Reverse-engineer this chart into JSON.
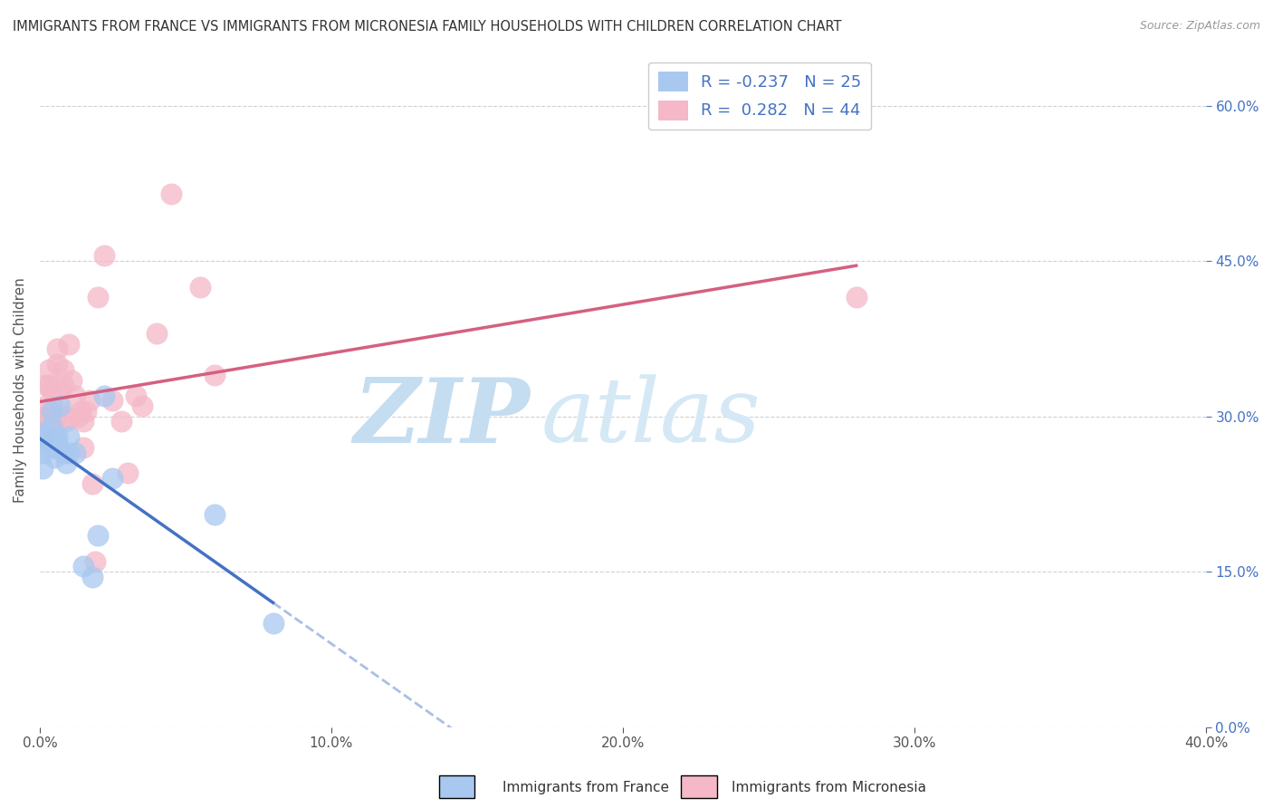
{
  "title": "IMMIGRANTS FROM FRANCE VS IMMIGRANTS FROM MICRONESIA FAMILY HOUSEHOLDS WITH CHILDREN CORRELATION CHART",
  "source": "Source: ZipAtlas.com",
  "ylabel": "Family Households with Children",
  "legend_france": "Immigrants from France",
  "legend_micronesia": "Immigrants from Micronesia",
  "R_france": -0.237,
  "N_france": 25,
  "R_micronesia": 0.282,
  "N_micronesia": 44,
  "france_color": "#a8c8f0",
  "micronesia_color": "#f4b8c8",
  "france_line_color": "#4472c4",
  "micronesia_line_color": "#d46080",
  "xlim": [
    0.0,
    0.4
  ],
  "ylim": [
    0.0,
    0.65
  ],
  "xticks": [
    0.0,
    0.1,
    0.2,
    0.3,
    0.4
  ],
  "yticks_right": [
    0.0,
    0.15,
    0.3,
    0.45,
    0.6
  ],
  "france_x": [
    0.001,
    0.001,
    0.002,
    0.002,
    0.003,
    0.003,
    0.004,
    0.004,
    0.005,
    0.005,
    0.006,
    0.006,
    0.007,
    0.008,
    0.009,
    0.01,
    0.01,
    0.012,
    0.015,
    0.018,
    0.02,
    0.022,
    0.025,
    0.06,
    0.08
  ],
  "france_y": [
    0.265,
    0.25,
    0.27,
    0.285,
    0.28,
    0.275,
    0.29,
    0.305,
    0.27,
    0.26,
    0.28,
    0.275,
    0.31,
    0.265,
    0.255,
    0.28,
    0.265,
    0.265,
    0.155,
    0.145,
    0.185,
    0.32,
    0.24,
    0.205,
    0.1
  ],
  "micronesia_x": [
    0.0005,
    0.001,
    0.001,
    0.002,
    0.002,
    0.003,
    0.003,
    0.003,
    0.004,
    0.004,
    0.005,
    0.005,
    0.005,
    0.006,
    0.006,
    0.007,
    0.007,
    0.008,
    0.008,
    0.009,
    0.01,
    0.01,
    0.011,
    0.012,
    0.013,
    0.014,
    0.015,
    0.015,
    0.016,
    0.017,
    0.018,
    0.019,
    0.02,
    0.022,
    0.025,
    0.028,
    0.03,
    0.033,
    0.035,
    0.04,
    0.045,
    0.055,
    0.06,
    0.28
  ],
  "micronesia_y": [
    0.295,
    0.3,
    0.28,
    0.31,
    0.33,
    0.33,
    0.345,
    0.3,
    0.31,
    0.325,
    0.3,
    0.285,
    0.295,
    0.35,
    0.365,
    0.325,
    0.305,
    0.33,
    0.345,
    0.295,
    0.3,
    0.37,
    0.335,
    0.32,
    0.3,
    0.305,
    0.295,
    0.27,
    0.305,
    0.315,
    0.235,
    0.16,
    0.415,
    0.455,
    0.315,
    0.295,
    0.245,
    0.32,
    0.31,
    0.38,
    0.515,
    0.425,
    0.34,
    0.415
  ],
  "background_color": "#ffffff",
  "grid_color": "#cccccc",
  "title_color": "#333333",
  "axis_label_color": "#555555",
  "right_tick_color": "#4472c4",
  "watermark_zip": "ZIP",
  "watermark_atlas": "atlas",
  "watermark_color_zip": "#c8dff0",
  "watermark_color_atlas": "#d8eaf8"
}
